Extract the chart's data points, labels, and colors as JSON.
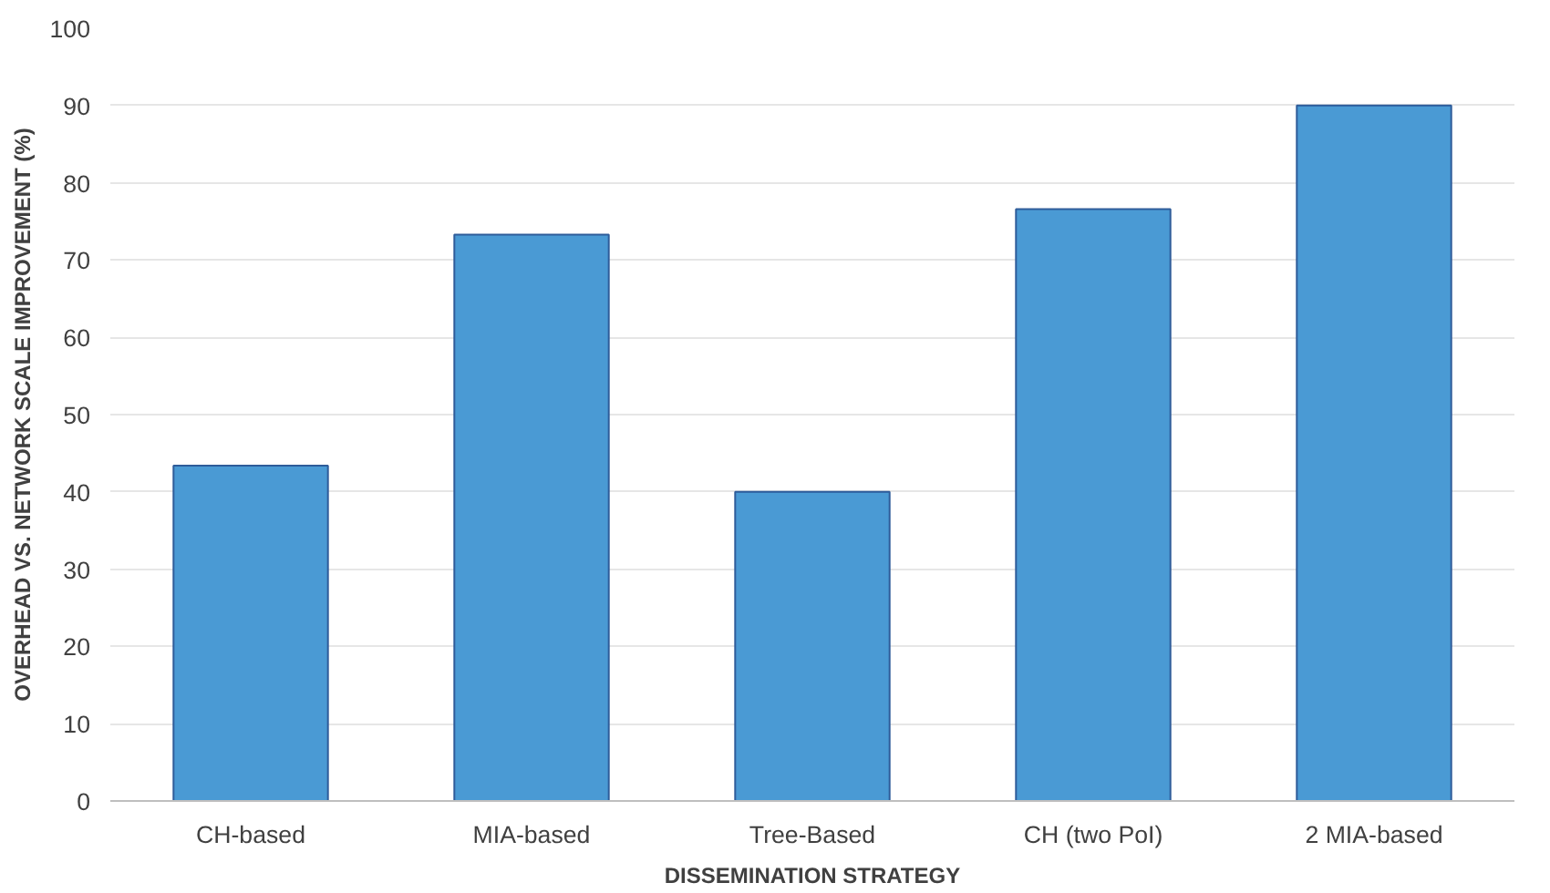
{
  "chart_data": {
    "type": "bar",
    "xlabel": "DISSEMINATION STRATEGY",
    "ylabel": "OVERHEAD VS. NETWORK SCALE IMPROVEMENT (%)",
    "categories": [
      "CH-based",
      "MIA-based",
      "Tree-Based",
      "CH (two PoI)",
      "2 MIA-based"
    ],
    "values": [
      43.4,
      73.3,
      40,
      76.6,
      90
    ],
    "color": "#4a9ad4",
    "ylim": [
      0,
      100
    ],
    "yticks": [
      0,
      10,
      20,
      30,
      40,
      50,
      60,
      70,
      80,
      90,
      100
    ],
    "grid": "y"
  }
}
